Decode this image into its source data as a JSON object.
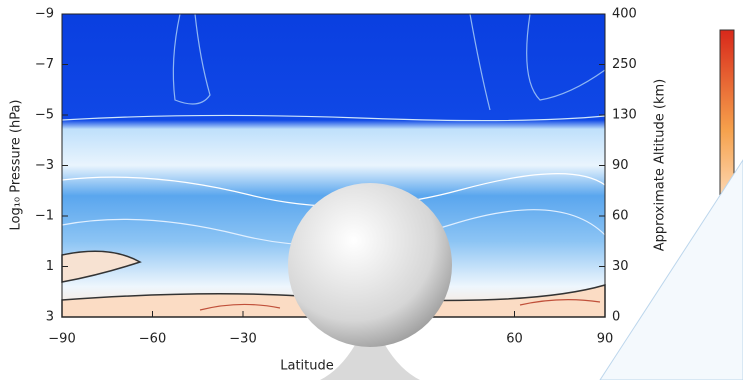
{
  "chart_data": {
    "type": "contour",
    "xlabel": "Latitude",
    "ylabel": "Log₁₀ Pressure (hPa)",
    "y2label": "Approximate Altitude (km)",
    "xlim": [
      -90,
      90
    ],
    "xticks": [
      {
        "value": -90,
        "label": "−90"
      },
      {
        "value": -60,
        "label": "−60"
      },
      {
        "value": -30,
        "label": "−30"
      },
      60,
      90
    ],
    "ylim": [
      3,
      -9
    ],
    "yticks": [
      {
        "value": -9,
        "label": "−9"
      },
      {
        "value": -7,
        "label": "−7"
      },
      {
        "value": -5,
        "label": "−5"
      },
      {
        "value": -3,
        "label": "−3"
      },
      {
        "value": -1,
        "label": "−1"
      },
      1,
      3
    ],
    "y2ticks": [
      400,
      250,
      130,
      90,
      60,
      30,
      0
    ]
  }
}
